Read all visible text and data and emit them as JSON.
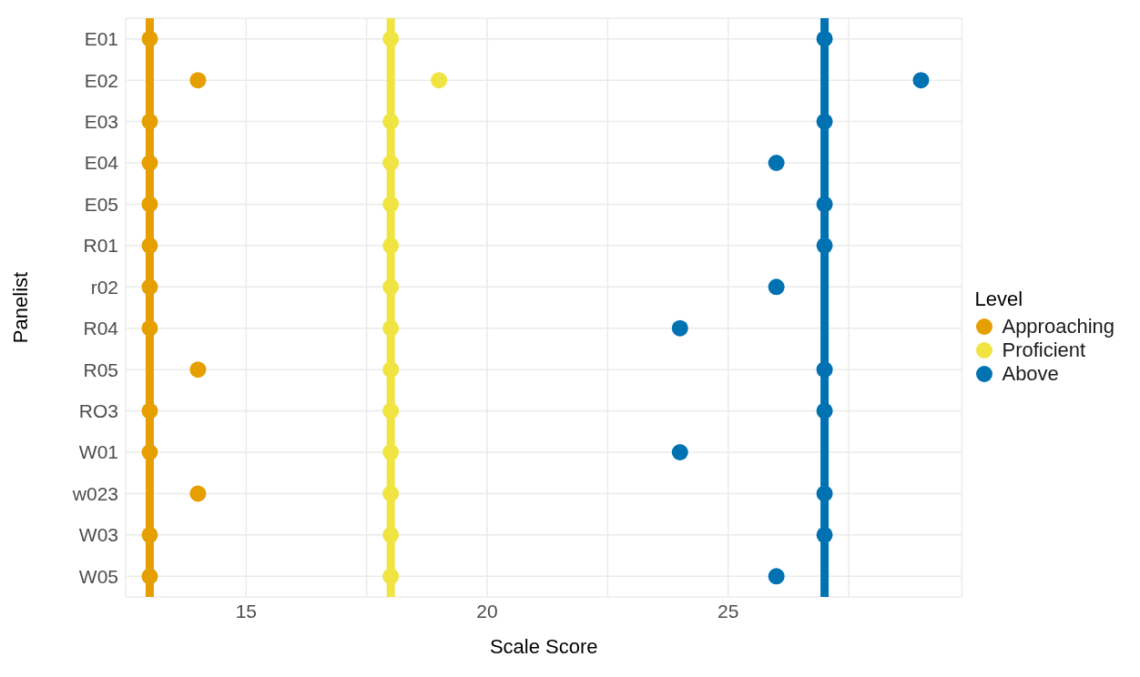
{
  "chart_data": {
    "type": "scatter",
    "xlabel": "Scale Score",
    "ylabel": "Panelist",
    "legend_title": "Level",
    "legend": "right",
    "grid": true,
    "marker": "circle",
    "orientation": "horizontal",
    "categories": [
      "E01",
      "E02",
      "E03",
      "E04",
      "E05",
      "R01",
      "r02",
      "R04",
      "R05",
      "RO3",
      "W01",
      "w023",
      "W03",
      "W05"
    ],
    "xlim": [
      12.5,
      29.85
    ],
    "xticks": [
      {
        "value": 12.5,
        "label": null
      },
      15,
      {
        "value": 17.5,
        "label": null
      },
      20,
      {
        "value": 22.5,
        "label": null
      },
      25,
      {
        "value": 27.5,
        "label": null
      }
    ],
    "series": [
      {
        "name": "Approaching",
        "color": "#e69f00",
        "values": [
          13,
          14,
          13,
          13,
          13,
          13,
          13,
          13,
          14,
          13,
          13,
          14,
          13,
          13
        ]
      },
      {
        "name": "Proficient",
        "color": "#f0e442",
        "values": [
          18,
          19,
          18,
          18,
          18,
          18,
          18,
          18,
          18,
          18,
          18,
          18,
          18,
          18
        ]
      },
      {
        "name": "Above",
        "color": "#0072b2",
        "values": [
          27,
          29,
          27,
          26,
          27,
          27,
          26,
          24,
          27,
          27,
          24,
          27,
          27,
          26
        ]
      }
    ],
    "ref_lines": [
      {
        "axis": "x",
        "value": 13,
        "color": "#e69f00"
      },
      {
        "axis": "x",
        "value": 18,
        "color": "#f0e442"
      },
      {
        "axis": "x",
        "value": 27,
        "color": "#0072b2"
      }
    ]
  }
}
